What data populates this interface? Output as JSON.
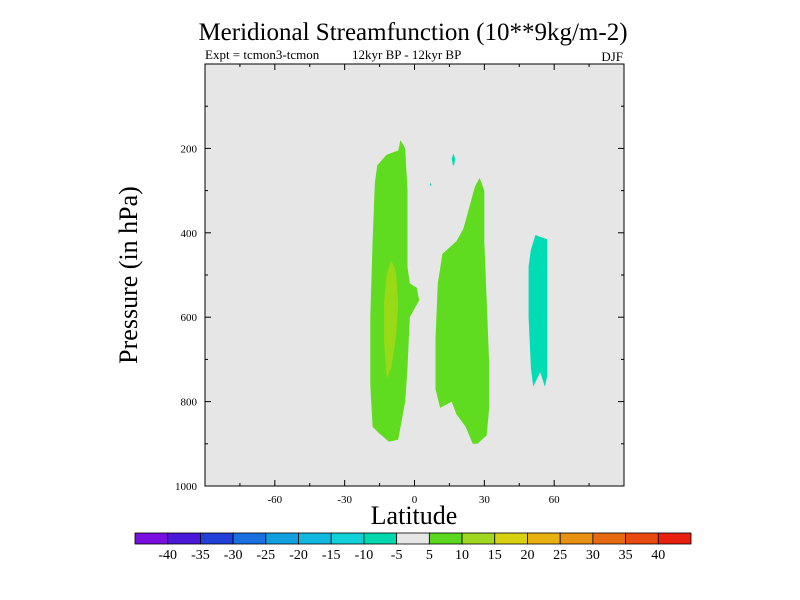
{
  "chart_data": {
    "type": "heatmap",
    "title": "Meridional Streamfunction (10**9kg/m-2)",
    "subtitle_left": "Expt = tcmon3-tcmon",
    "subtitle_mid": "12kyr BP - 12kyr BP",
    "subtitle_right": "DJF",
    "xlabel": "Latitude",
    "ylabel": "Pressure (in hPa)",
    "xlim": [
      -90,
      90
    ],
    "ylim": [
      1000,
      0
    ],
    "x_ticks": [
      -60,
      -30,
      0,
      30,
      60
    ],
    "y_ticks": [
      200,
      400,
      600,
      800,
      1000
    ],
    "background_color": "#e6e6e6",
    "contour_levels": [
      -45,
      -40,
      -35,
      -30,
      -25,
      -20,
      -15,
      -10,
      -5,
      5,
      10,
      15,
      20,
      25,
      30,
      35,
      40,
      45
    ],
    "colorbar_labels": [
      "-40",
      "-35",
      "-30",
      "-25",
      "-20",
      "-15",
      "-10",
      "-5",
      "5",
      "10",
      "15",
      "20",
      "25",
      "30",
      "35",
      "40"
    ],
    "colorbar_colors": [
      "#7a10e0",
      "#4a18d8",
      "#2040d8",
      "#1a70e0",
      "#10a0e0",
      "#10b8e0",
      "#10d0d8",
      "#00d8b0",
      "#e6e6e6",
      "#5ad820",
      "#a0d820",
      "#d8d010",
      "#e8b010",
      "#e89010",
      "#e86a10",
      "#e84a10",
      "#e82010"
    ],
    "regions": [
      {
        "range": "5 to 10",
        "color": "#5fdc1f",
        "points": [
          [
            -15,
            876
          ],
          [
            -18,
            860
          ],
          [
            -19,
            760
          ],
          [
            -19,
            600
          ],
          [
            -18,
            420
          ],
          [
            -17,
            280
          ],
          [
            -16,
            240
          ],
          [
            -12,
            215
          ],
          [
            -7,
            205
          ],
          [
            -6,
            180
          ],
          [
            -4,
            200
          ],
          [
            -3,
            300
          ],
          [
            -3,
            480
          ],
          [
            -2,
            520
          ],
          [
            1,
            530
          ],
          [
            2,
            560
          ],
          [
            -2,
            600
          ],
          [
            -3,
            720
          ],
          [
            -4,
            800
          ],
          [
            -7,
            890
          ],
          [
            -11,
            895
          ]
        ]
      },
      {
        "range": "10 to 15",
        "color": "#99d915",
        "points": [
          [
            -12,
            745
          ],
          [
            -13,
            660
          ],
          [
            -13,
            560
          ],
          [
            -12,
            500
          ],
          [
            -10,
            465
          ],
          [
            -8,
            490
          ],
          [
            -7,
            570
          ],
          [
            -8,
            650
          ],
          [
            -10,
            720
          ]
        ]
      },
      {
        "range": "5 to 10",
        "color": "#5fdc1f",
        "points": [
          [
            11,
            815
          ],
          [
            9,
            770
          ],
          [
            9,
            650
          ],
          [
            10,
            520
          ],
          [
            12,
            450
          ],
          [
            18,
            420
          ],
          [
            21,
            390
          ],
          [
            24,
            330
          ],
          [
            26,
            290
          ],
          [
            28,
            270
          ],
          [
            30,
            300
          ],
          [
            30,
            420
          ],
          [
            31,
            560
          ],
          [
            32,
            700
          ],
          [
            32,
            820
          ],
          [
            31,
            880
          ],
          [
            27,
            900
          ],
          [
            25,
            900
          ],
          [
            22,
            860
          ],
          [
            18,
            830
          ],
          [
            16,
            800
          ]
        ]
      },
      {
        "range": "-10 to -5",
        "color": "#00dcb4",
        "points": [
          [
            51,
            765
          ],
          [
            50,
            720
          ],
          [
            49,
            600
          ],
          [
            49,
            480
          ],
          [
            50,
            440
          ],
          [
            52,
            405
          ],
          [
            54,
            410
          ],
          [
            57,
            415
          ],
          [
            57,
            520
          ],
          [
            57,
            680
          ],
          [
            57,
            740
          ],
          [
            56,
            765
          ],
          [
            54,
            730
          ]
        ]
      },
      {
        "range": "-10 to -5",
        "color": "#00dcb4",
        "points": [
          [
            16.5,
            240
          ],
          [
            16,
            225
          ],
          [
            16.7,
            212
          ],
          [
            17.5,
            225
          ],
          [
            17,
            240
          ]
        ]
      },
      {
        "range": "-10 to -5",
        "color": "#00dcb4",
        "points": [
          [
            6.5,
            288
          ],
          [
            7,
            280
          ],
          [
            7.3,
            288
          ]
        ]
      }
    ]
  }
}
